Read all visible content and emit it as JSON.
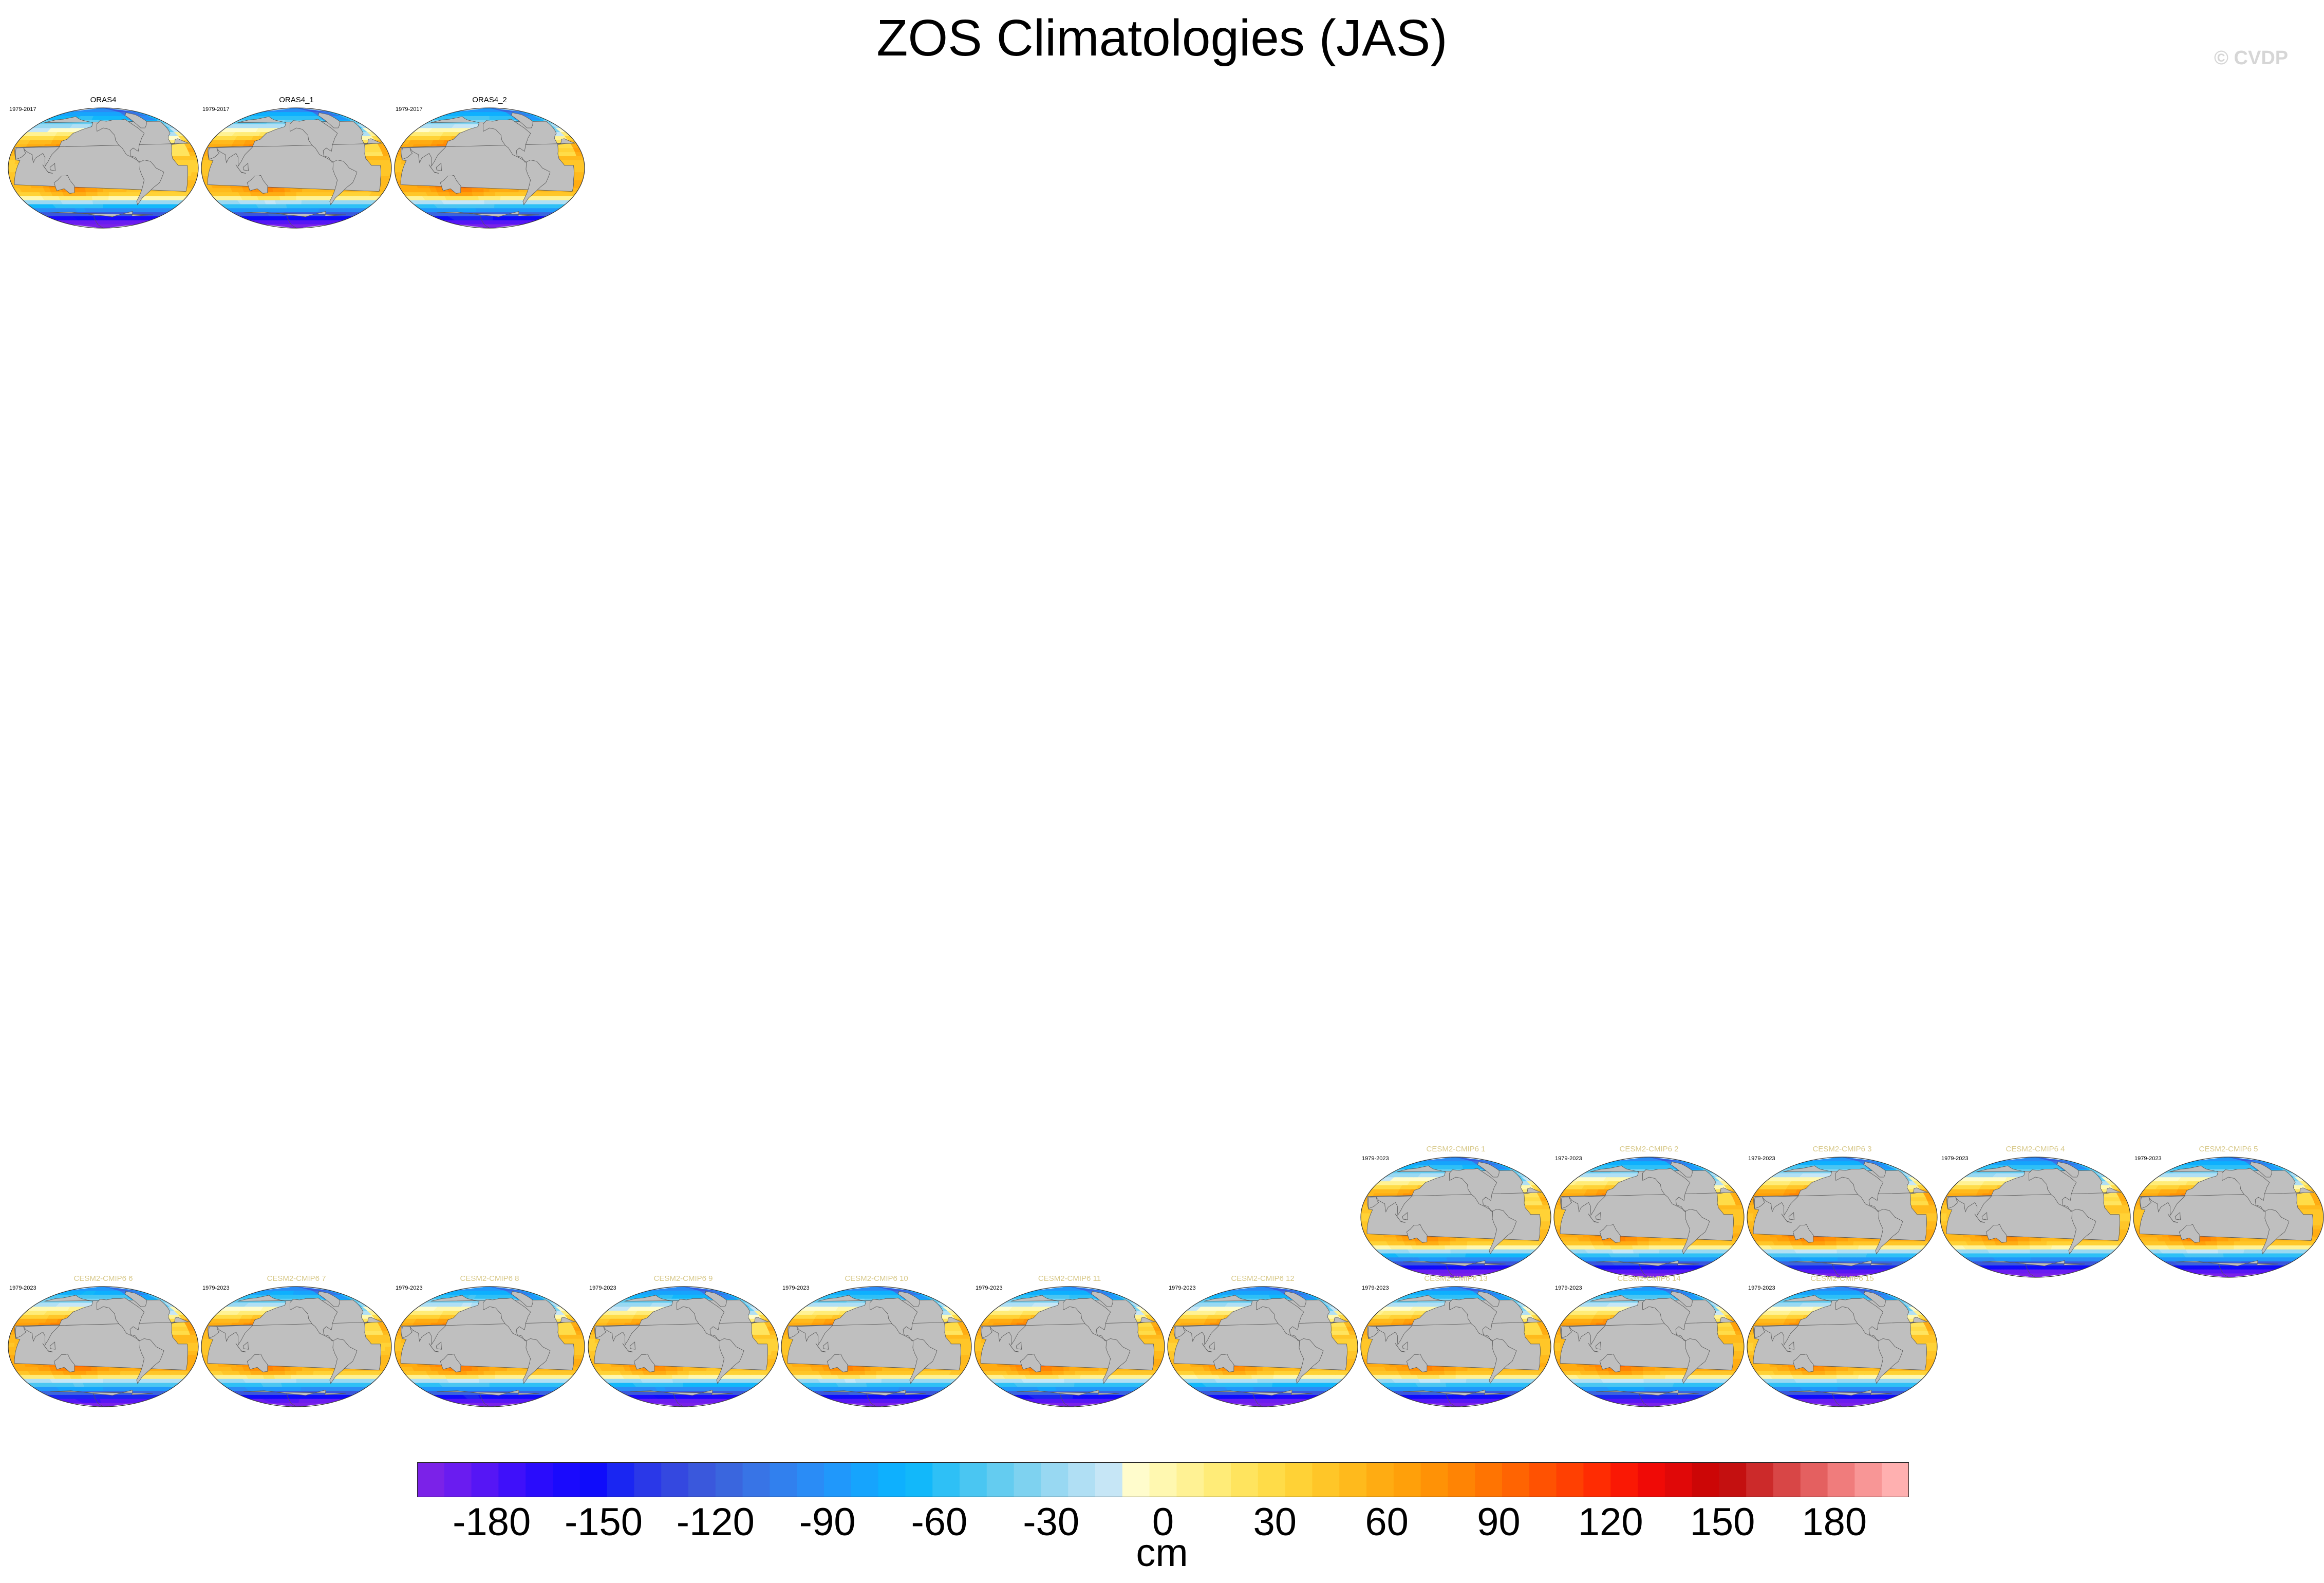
{
  "title": "ZOS Climatologies (JAS)",
  "watermark": "© CVDP",
  "chart_data": {
    "type": "heatmap",
    "title": "ZOS Climatologies (JAS)",
    "colorbar": {
      "label": "cm",
      "min": -200,
      "max": 200,
      "step": 10,
      "tick_labels": [
        "-180",
        "-150",
        "-120",
        "-90",
        "-60",
        "-30",
        "0",
        "30",
        "60",
        "90",
        "120",
        "150",
        "180"
      ],
      "tick_values": [
        -180,
        -150,
        -120,
        -90,
        -60,
        -30,
        0,
        30,
        60,
        90,
        120,
        150,
        180
      ]
    },
    "panels": [
      {
        "name": "ORAS4",
        "years": "1979-2017",
        "group": "observations"
      },
      {
        "name": "ORAS4_1",
        "years": "1979-2017",
        "group": "observations"
      },
      {
        "name": "ORAS4_2",
        "years": "1979-2017",
        "group": "observations"
      },
      {
        "name": "CESM2-CMIP6 1",
        "years": "1979-2023",
        "group": "model"
      },
      {
        "name": "CESM2-CMIP6 2",
        "years": "1979-2023",
        "group": "model"
      },
      {
        "name": "CESM2-CMIP6 3",
        "years": "1979-2023",
        "group": "model"
      },
      {
        "name": "CESM2-CMIP6 4",
        "years": "1979-2023",
        "group": "model"
      },
      {
        "name": "CESM2-CMIP6 5",
        "years": "1979-2023",
        "group": "model"
      },
      {
        "name": "CESM2-CMIP6 6",
        "years": "1979-2023",
        "group": "model"
      },
      {
        "name": "CESM2-CMIP6 7",
        "years": "1979-2023",
        "group": "model"
      },
      {
        "name": "CESM2-CMIP6 8",
        "years": "1979-2023",
        "group": "model"
      },
      {
        "name": "CESM2-CMIP6 9",
        "years": "1979-2023",
        "group": "model"
      },
      {
        "name": "CESM2-CMIP6 10",
        "years": "1979-2023",
        "group": "model"
      },
      {
        "name": "CESM2-CMIP6 11",
        "years": "1979-2023",
        "group": "model"
      },
      {
        "name": "CESM2-CMIP6 12",
        "years": "1979-2023",
        "group": "model"
      },
      {
        "name": "CESM2-CMIP6 13",
        "years": "1979-2023",
        "group": "model"
      },
      {
        "name": "CESM2-CMIP6 14",
        "years": "1979-2023",
        "group": "model"
      },
      {
        "name": "CESM2-CMIP6 15",
        "years": "1979-2023",
        "group": "model"
      }
    ]
  },
  "colors": {
    "obs_title": "#000000",
    "model_title": "#d8c98a",
    "land": "#bfbfbf",
    "palette": [
      "#7b22e8",
      "#6a1cf0",
      "#5616f5",
      "#3f10fa",
      "#2a0cfc",
      "#1a0afd",
      "#0f0cfb",
      "#1a26f2",
      "#2a38e8",
      "#3448e0",
      "#3a58dc",
      "#3a66de",
      "#3874e6",
      "#3180ee",
      "#2a8cf6",
      "#2098fb",
      "#16a4fd",
      "#0eb0fe",
      "#12b8fa",
      "#2ec0f6",
      "#4ac6f2",
      "#64ccf0",
      "#7ed2f0",
      "#98d8f2",
      "#b0dff4",
      "#c6e6f6",
      "#fffccc",
      "#fff8b0",
      "#fff294",
      "#ffec78",
      "#ffe45e",
      "#ffdc48",
      "#ffd236",
      "#ffc628",
      "#ffba1c",
      "#ffac12",
      "#ffa00a",
      "#ff9206",
      "#ff8404",
      "#ff7402",
      "#ff6402",
      "#ff5202",
      "#ff4002",
      "#ff2c02",
      "#fa1804",
      "#f00a06",
      "#e00808",
      "#cc0606",
      "#c41010",
      "#cc2a2a",
      "#d84646",
      "#e46060",
      "#f07c7c",
      "#f89696",
      "#ffb0b0"
    ]
  }
}
